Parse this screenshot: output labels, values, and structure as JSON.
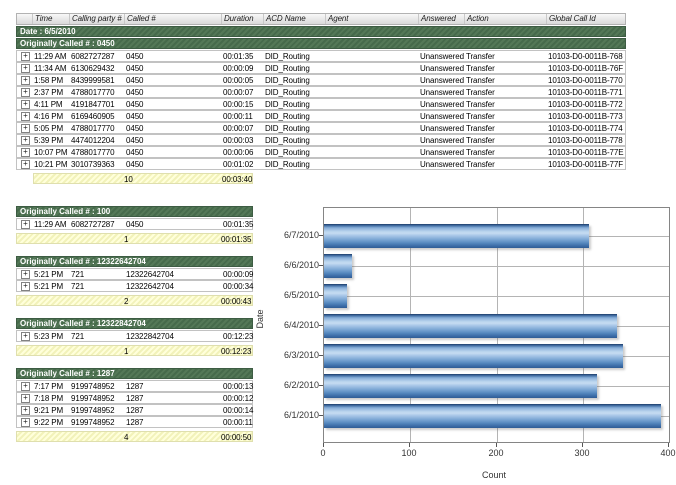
{
  "report": {
    "columns": [
      "",
      "Time",
      "Calling party #",
      "Called #",
      "Duration",
      "ACD Name",
      "Agent",
      "Answered",
      "Action",
      "Global Call Id"
    ],
    "date_group_label": "Date : 6/5/2010",
    "groups": [
      {
        "title": "Originally Called # : 0450",
        "rows": [
          [
            "11:29 AM",
            "6082727287",
            "0450",
            "00:01:35",
            "DID_Routing",
            "",
            "Unanswered",
            "Transfer",
            "10103-D0-0011B-768"
          ],
          [
            "11:34 AM",
            "6130629432",
            "0450",
            "00:00:09",
            "DID_Routing",
            "",
            "Unanswered",
            "Transfer",
            "10103-D0-0011B-76F"
          ],
          [
            "1:58 PM",
            "8439999581",
            "0450",
            "00:00:05",
            "DID_Routing",
            "",
            "Unanswered",
            "Transfer",
            "10103-D0-0011B-770"
          ],
          [
            "2:37 PM",
            "4788017770",
            "0450",
            "00:00:07",
            "DID_Routing",
            "",
            "Unanswered",
            "Transfer",
            "10103-D0-0011B-771"
          ],
          [
            "4:11 PM",
            "4191847701",
            "0450",
            "00:00:15",
            "DID_Routing",
            "",
            "Unanswered",
            "Transfer",
            "10103-D0-0011B-772"
          ],
          [
            "4:16 PM",
            "6169460905",
            "0450",
            "00:00:11",
            "DID_Routing",
            "",
            "Unanswered",
            "Transfer",
            "10103-D0-0011B-773"
          ],
          [
            "5:05 PM",
            "4788017770",
            "0450",
            "00:00:07",
            "DID_Routing",
            "",
            "Unanswered",
            "Transfer",
            "10103-D0-0011B-774"
          ],
          [
            "5:39 PM",
            "4474012204",
            "0450",
            "00:00:03",
            "DID_Routing",
            "",
            "Unanswered",
            "Transfer",
            "10103-D0-0011B-778"
          ],
          [
            "10:07 PM",
            "4788017770",
            "0450",
            "00:00:06",
            "DID_Routing",
            "",
            "Unanswered",
            "Transfer",
            "10103-D0-0011B-77E"
          ],
          [
            "10:21 PM",
            "3010739363",
            "0450",
            "00:01:02",
            "DID_Routing",
            "",
            "Unanswered",
            "Transfer",
            "10103-D0-0011B-77F"
          ]
        ],
        "summary": {
          "count": "10",
          "duration": "00:03:40"
        }
      },
      {
        "title": "Originally Called # : 100",
        "rows": [
          [
            "11:29 AM",
            "6082727287",
            "0450",
            "00:01:35"
          ]
        ],
        "summary": {
          "count": "1",
          "duration": "00:01:35"
        }
      },
      {
        "title": "Originally Called # : 12322642704",
        "rows": [
          [
            "5:21 PM",
            "721",
            "12322642704",
            "00:00:09"
          ],
          [
            "5:21 PM",
            "721",
            "12322642704",
            "00:00:34"
          ]
        ],
        "summary": {
          "count": "2",
          "duration": "00:00:43"
        }
      },
      {
        "title": "Originally Called # : 12322842704",
        "rows": [
          [
            "5:23 PM",
            "721",
            "12322842704",
            "00:12:23"
          ]
        ],
        "summary": {
          "count": "1",
          "duration": "00:12:23"
        }
      },
      {
        "title": "Originally Called # : 1287",
        "rows": [
          [
            "7:17 PM",
            "9199748952",
            "1287",
            "00:00:13"
          ],
          [
            "7:18 PM",
            "9199748952",
            "1287",
            "00:00:12"
          ],
          [
            "9:21 PM",
            "9199748952",
            "1287",
            "00:00:14"
          ],
          [
            "9:22 PM",
            "9199748952",
            "1287",
            "00:00:11"
          ]
        ],
        "summary": {
          "count": "4",
          "duration": "00:00:50"
        }
      }
    ]
  },
  "icons": {
    "expand": "+"
  },
  "colors": {
    "group_header_green": "#4d7153",
    "summary_yellow": "#ffffd6",
    "bar_blue": "#5b8cc8",
    "grid_gray": "#b4b4b4"
  },
  "chart_data": {
    "type": "bar",
    "orientation": "horizontal",
    "categories": [
      "6/7/2010",
      "6/6/2010",
      "6/5/2010",
      "6/4/2010",
      "6/3/2010",
      "6/2/2010",
      "6/1/2010"
    ],
    "values": [
      307,
      32,
      27,
      340,
      347,
      317,
      391
    ],
    "title": "",
    "xlabel": "Count",
    "ylabel": "Date",
    "xlim": [
      0,
      400
    ],
    "xticks": [
      0,
      100,
      200,
      300,
      400
    ],
    "grid": true,
    "legend": false
  }
}
